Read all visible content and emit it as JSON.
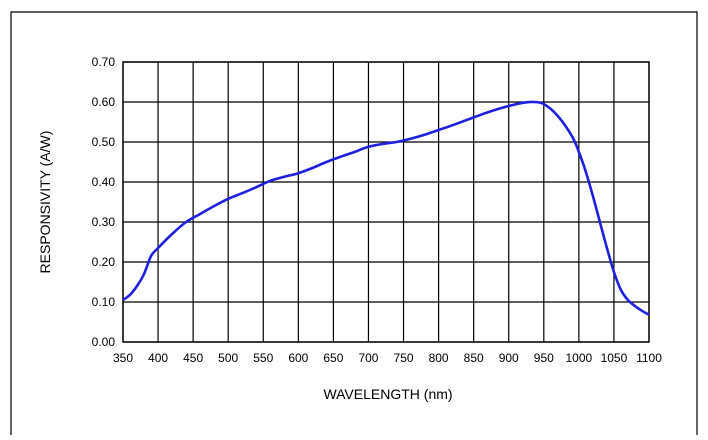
{
  "chart_data": {
    "type": "line",
    "title": "",
    "xlabel": "WAVELENGTH (nm)",
    "ylabel": "RESPONSIVITY (A/W)",
    "xlim": [
      350,
      1100
    ],
    "ylim": [
      0.0,
      0.7
    ],
    "x_ticks": [
      "350",
      "400",
      "450",
      "500",
      "550",
      "600",
      "650",
      "700",
      "750",
      "800",
      "850",
      "900",
      "950",
      "1000",
      "1050",
      "1100"
    ],
    "y_ticks": [
      "0.00",
      "0.10",
      "0.20",
      "0.30",
      "0.40",
      "0.50",
      "0.60",
      "0.70"
    ],
    "grid": true,
    "line_color": "#1f1fe0",
    "series": [
      {
        "x": [
          350,
          360,
          370,
          380,
          390,
          400,
          420,
          440,
          460,
          480,
          500,
          520,
          540,
          560,
          580,
          600,
          620,
          640,
          660,
          680,
          700,
          720,
          740,
          760,
          780,
          800,
          820,
          840,
          860,
          880,
          900,
          920,
          935,
          950,
          970,
          990,
          1000,
          1010,
          1020,
          1030,
          1040,
          1050,
          1060,
          1070,
          1080,
          1090,
          1100
        ],
        "y": [
          0.105,
          0.118,
          0.14,
          0.17,
          0.215,
          0.235,
          0.27,
          0.3,
          0.32,
          0.34,
          0.358,
          0.372,
          0.387,
          0.403,
          0.413,
          0.422,
          0.435,
          0.45,
          0.463,
          0.475,
          0.488,
          0.495,
          0.5,
          0.508,
          0.518,
          0.53,
          0.542,
          0.555,
          0.568,
          0.58,
          0.59,
          0.598,
          0.6,
          0.595,
          0.565,
          0.515,
          0.475,
          0.425,
          0.365,
          0.3,
          0.235,
          0.175,
          0.13,
          0.105,
          0.09,
          0.078,
          0.068
        ]
      }
    ]
  }
}
